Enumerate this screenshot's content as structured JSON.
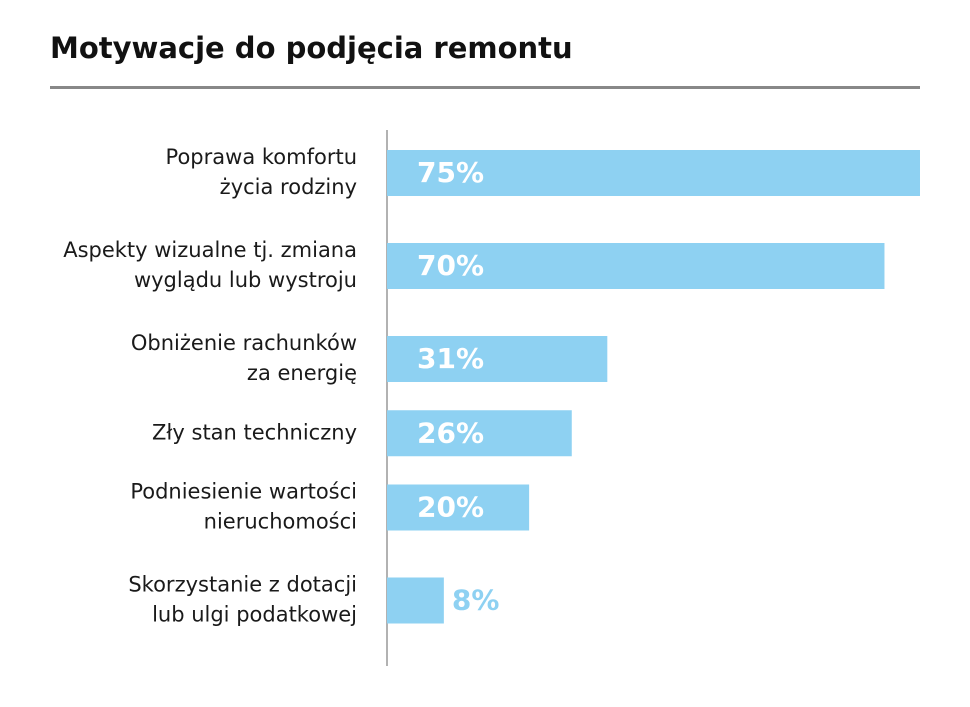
{
  "chart_data": {
    "type": "bar",
    "orientation": "horizontal",
    "title": "Motywacje do podjęcia remontu",
    "categories": [
      [
        "Poprawa komfortu",
        "życia rodziny"
      ],
      [
        "Aspekty wizualne tj. zmiana",
        "wyglądu lub wystroju"
      ],
      [
        "Obniżenie rachunków",
        "za energię"
      ],
      [
        "Zły stan techniczny"
      ],
      [
        "Podniesienie wartości",
        "nieruchomości"
      ],
      [
        "Skorzystanie z dotacji",
        "lub ulgi podatkowej"
      ]
    ],
    "values": [
      75,
      70,
      31,
      26,
      20,
      8
    ],
    "value_labels": [
      "75%",
      "70%",
      "31%",
      "26%",
      "20%",
      "8%"
    ],
    "color": "#8ed1f2"
  }
}
